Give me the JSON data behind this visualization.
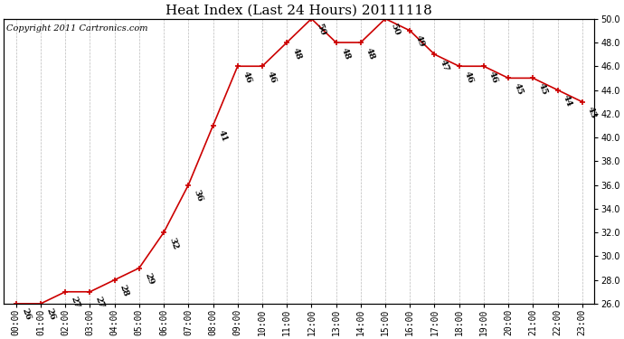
{
  "title": "Heat Index (Last 24 Hours) 20111118",
  "copyright": "Copyright 2011 Cartronics.com",
  "hours": [
    "00:00",
    "01:00",
    "02:00",
    "03:00",
    "04:00",
    "05:00",
    "06:00",
    "07:00",
    "08:00",
    "09:00",
    "10:00",
    "11:00",
    "12:00",
    "13:00",
    "14:00",
    "15:00",
    "16:00",
    "17:00",
    "18:00",
    "19:00",
    "20:00",
    "21:00",
    "22:00",
    "23:00"
  ],
  "values": [
    26,
    26,
    27,
    27,
    28,
    29,
    32,
    36,
    41,
    46,
    46,
    48,
    50,
    48,
    48,
    50,
    49,
    47,
    46,
    46,
    45,
    45,
    44,
    43
  ],
  "ylim_min": 26.0,
  "ylim_max": 50.0,
  "line_color": "#cc0000",
  "marker_color": "#cc0000",
  "background_color": "#ffffff",
  "plot_bg_color": "#ffffff",
  "grid_color": "#bbbbbb",
  "title_fontsize": 11,
  "tick_fontsize": 7,
  "annotation_fontsize": 7,
  "copyright_fontsize": 7,
  "ytick_step": 2.0
}
